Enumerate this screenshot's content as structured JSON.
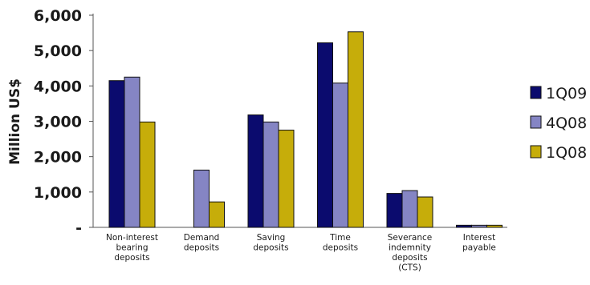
{
  "chart_data": {
    "type": "bar",
    "title": "",
    "ylabel": "Million US$",
    "xlabel": "",
    "ylim": [
      0,
      6000
    ],
    "yticks": [
      {
        "value": 0,
        "label": "-"
      },
      {
        "value": 1000,
        "label": "1,000"
      },
      {
        "value": 2000,
        "label": "2,000"
      },
      {
        "value": 3000,
        "label": "3,000"
      },
      {
        "value": 4000,
        "label": "4,000"
      },
      {
        "value": 5000,
        "label": "5,000"
      },
      {
        "value": 6000,
        "label": "6,000"
      }
    ],
    "categories": [
      "Non-interest bearing deposits",
      "Demand deposits",
      "Saving deposits",
      "Time deposits",
      "Severance indemnity deposits (CTS)",
      "Interest payable"
    ],
    "category_label_lines": [
      [
        "Non-interest",
        "bearing",
        "deposits"
      ],
      [
        "Demand",
        "deposits"
      ],
      [
        "Saving",
        "deposits"
      ],
      [
        "Time",
        "deposits"
      ],
      [
        "Severance",
        "indemnity",
        "deposits",
        "(CTS)"
      ],
      [
        "Interest",
        "payable"
      ]
    ],
    "series": [
      {
        "name": "1Q09",
        "color": "#0b0b6e",
        "values": [
          4150,
          0,
          3180,
          5220,
          960,
          60
        ]
      },
      {
        "name": "4Q08",
        "color": "#8585c4",
        "values": [
          4250,
          1620,
          2980,
          4080,
          1040,
          60
        ]
      },
      {
        "name": "1Q08",
        "color": "#c6ad0a",
        "values": [
          2980,
          720,
          2750,
          5530,
          860,
          60
        ]
      }
    ],
    "grid": false,
    "legend_position": "right"
  }
}
